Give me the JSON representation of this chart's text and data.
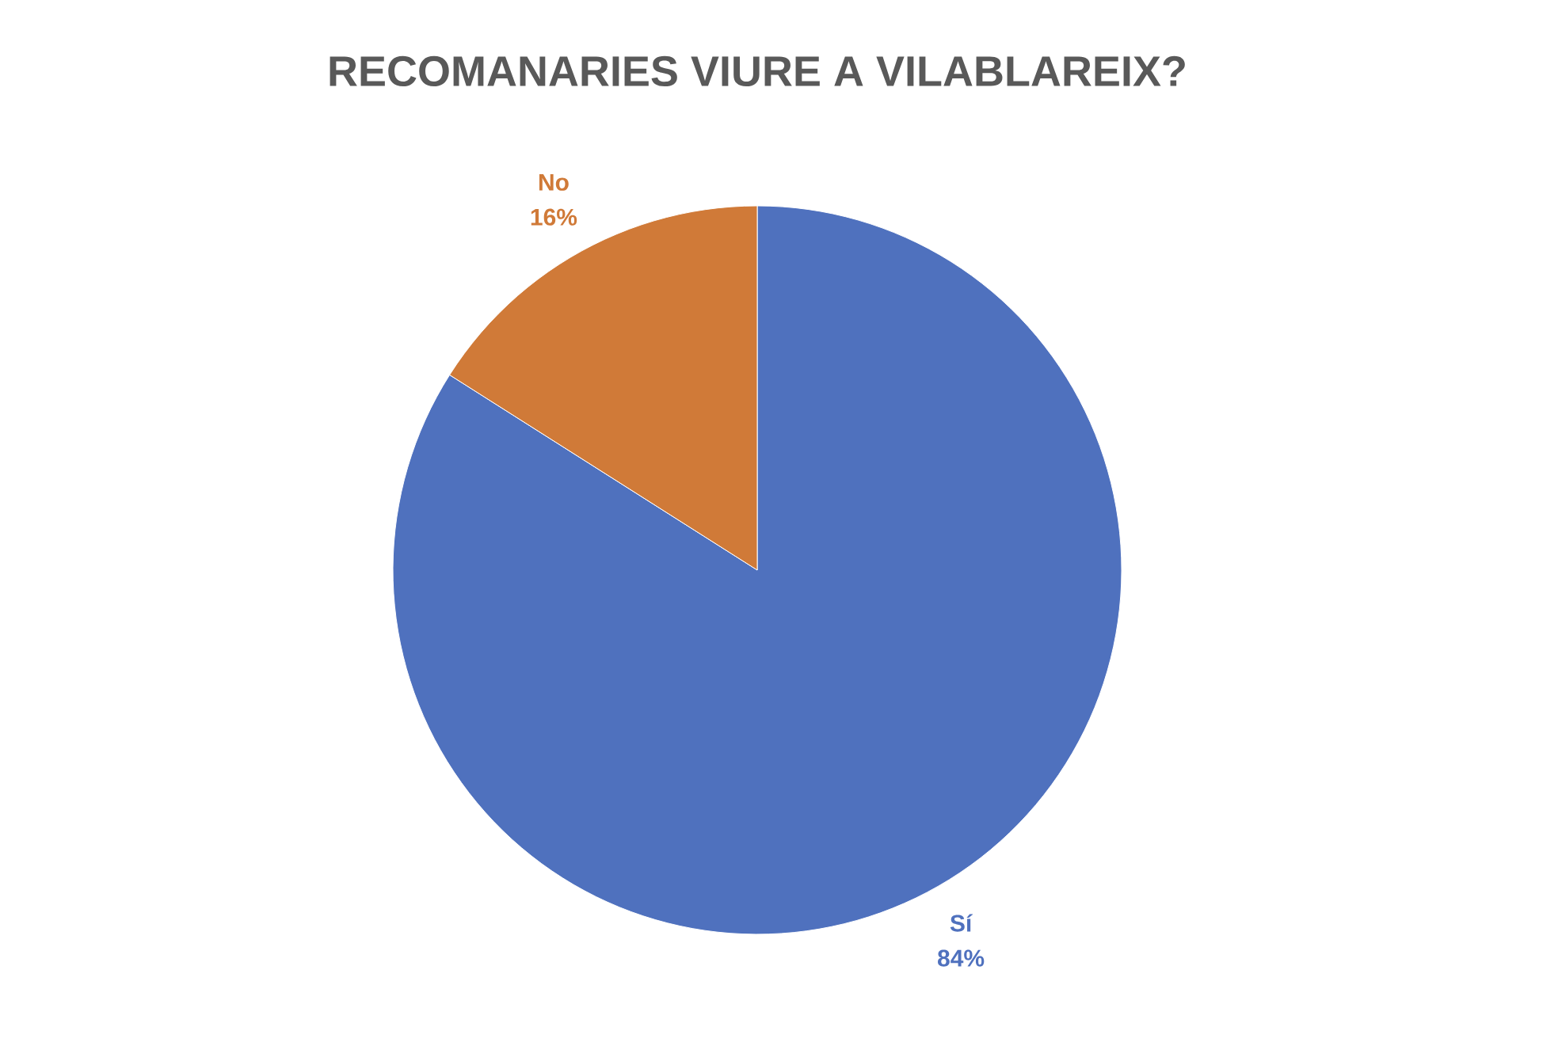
{
  "chart_data": {
    "type": "pie",
    "title": "RECOMANARIES VIURE A VILABLAREIX?",
    "categories": [
      "Sí",
      "No"
    ],
    "values": [
      84,
      16
    ],
    "value_labels": [
      "84%",
      "16%"
    ],
    "colors": [
      "#4f71be",
      "#d07a38"
    ]
  }
}
